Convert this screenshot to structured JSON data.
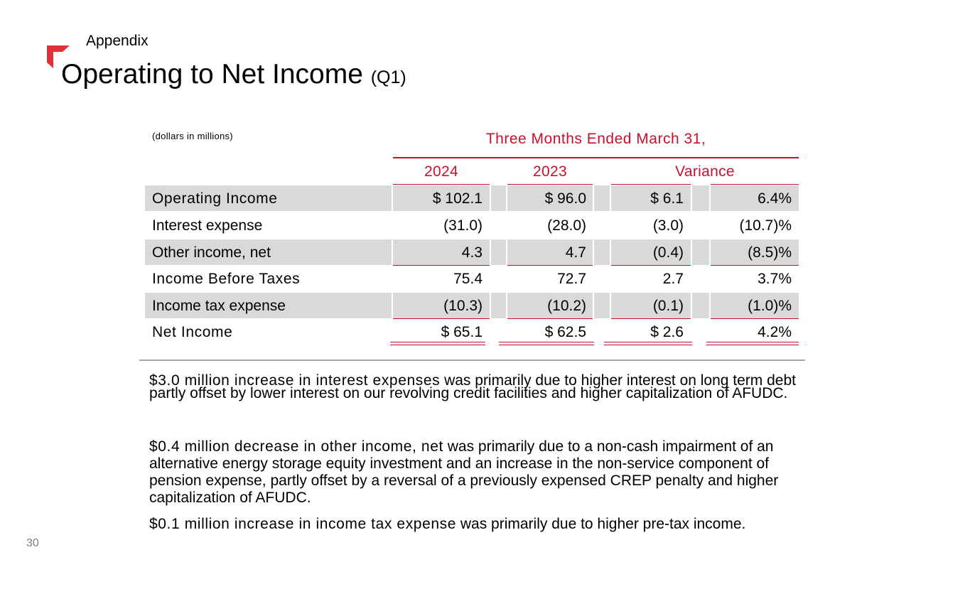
{
  "header": {
    "section": "Appendix",
    "title": "Operating to Net Income",
    "title_suffix": "(Q1)"
  },
  "table": {
    "units_note": "(dollars in millions)",
    "period_header": "Three Months Ended March 31,",
    "columns": [
      "2024",
      "2023",
      "Variance"
    ],
    "rows": [
      {
        "label": "Operating Income",
        "v2024": "$ 102.1",
        "v2023": "$ 96.0",
        "var": "$ 6.1",
        "pct": "6.4%"
      },
      {
        "label": "Interest expense",
        "v2024": "(31.0)",
        "v2023": "(28.0)",
        "var": "(3.0)",
        "pct": "(10.7)%"
      },
      {
        "label": "Other income, net",
        "v2024": "4.3",
        "v2023": "4.7",
        "var": "(0.4)",
        "pct": "(8.5)%"
      },
      {
        "label": "Income Before Taxes",
        "v2024": "75.4",
        "v2023": "72.7",
        "var": "2.7",
        "pct": "3.7%"
      },
      {
        "label": "Income tax expense",
        "v2024": "(10.3)",
        "v2023": "(10.2)",
        "var": "(0.1)",
        "pct": "(1.0)%"
      },
      {
        "label": "Net Income",
        "v2024": "$ 65.1",
        "v2023": "$ 62.5",
        "var": "$ 2.6",
        "pct": "4.2%"
      }
    ]
  },
  "commentary": [
    {
      "lead": "$3.0 million increase in interest expenses",
      "rest": " was primarily due to higher interest on long term debt partly offset by lower interest on our revolving credit facilities and higher capitalization of AFUDC."
    },
    {
      "lead": "$0.4 million decrease in other income, net",
      "rest": " was primarily due to a non-cash impairment of an alternative energy storage equity investment and an increase in the non-service component of pension expense, partly offset by a reversal of a previously expensed CREP penalty and higher capitalization of AFUDC."
    },
    {
      "lead": "$0.1 million increase in income tax expense",
      "rest": " was primarily due to higher pre-tax income."
    }
  ],
  "footer": {
    "page_number": "30"
  },
  "colors": {
    "accent": "#c8102e",
    "shade": "#d9d9d9"
  }
}
